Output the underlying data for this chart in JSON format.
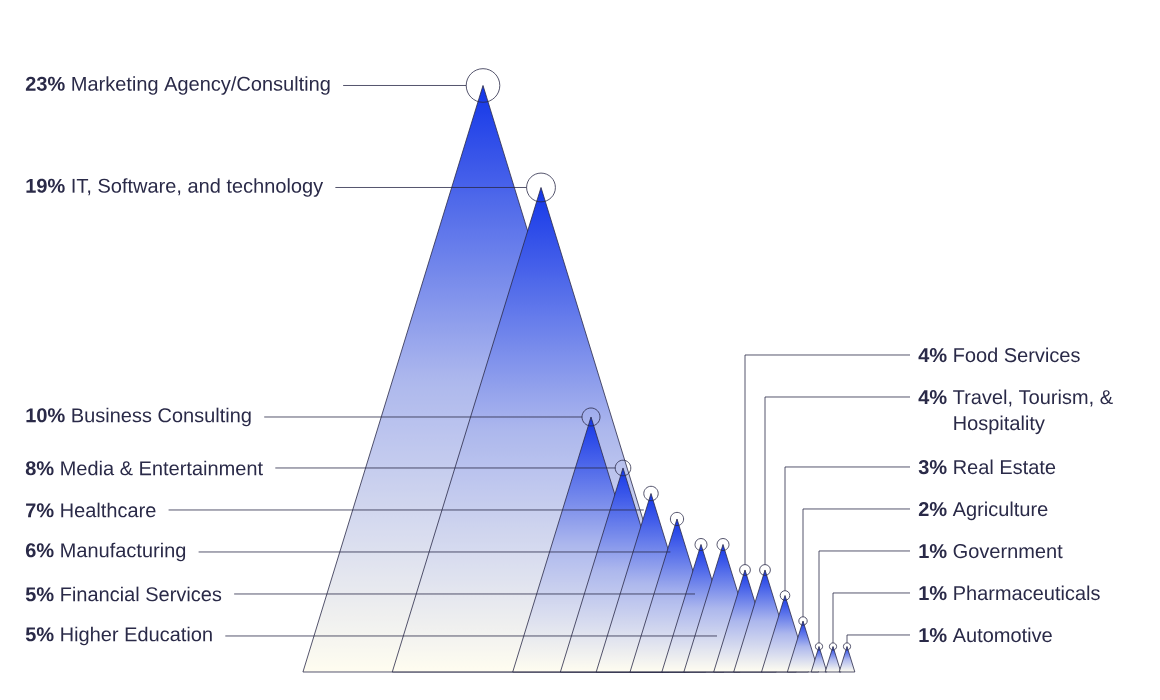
{
  "chart_data": {
    "type": "other",
    "categories": [
      "Marketing Agency/Consulting",
      "IT, Software, and technology",
      "Business Consulting",
      "Media & Entertainment",
      "Healthcare",
      "Manufacturing",
      "Financial Services",
      "Higher Education",
      "Food Services",
      "Travel, Tourism, & Hospitality",
      "Real Estate",
      "Agriculture",
      "Government",
      "Pharmaceuticals",
      "Automotive"
    ],
    "values": [
      23,
      19,
      10,
      8,
      7,
      6,
      5,
      5,
      4,
      4,
      3,
      2,
      1,
      1,
      1
    ],
    "value_labels": [
      "23%",
      "19%",
      "10%",
      "8%",
      "7%",
      "6%",
      "5%",
      "5%",
      "4%",
      "4%",
      "3%",
      "2%",
      "1%",
      "1%",
      "1%"
    ],
    "color": "#1336e8"
  }
}
